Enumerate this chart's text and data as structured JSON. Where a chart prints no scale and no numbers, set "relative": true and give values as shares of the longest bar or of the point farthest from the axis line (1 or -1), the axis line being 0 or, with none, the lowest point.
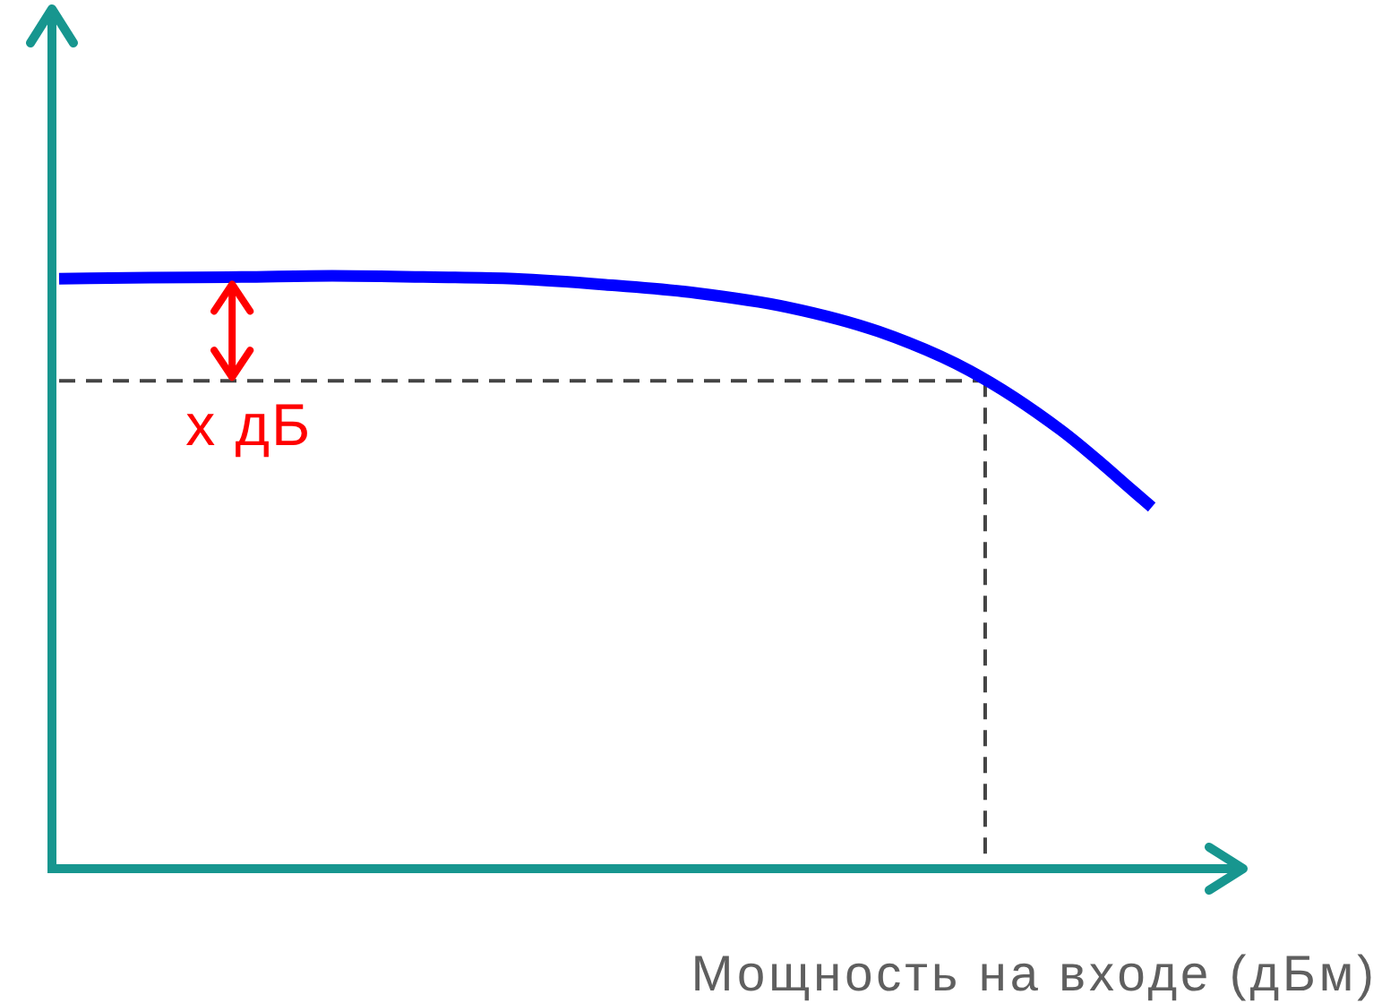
{
  "chart_data": {
    "type": "line",
    "xlabel": "Мощность на входе (дБм)",
    "categories": [
      null,
      null,
      null,
      null,
      null,
      null,
      null,
      null,
      null,
      null,
      null,
      null,
      null
    ],
    "series": [
      {
        "color": "#0000ff",
        "values": [
          0.995,
          0.997,
          0.998,
          1.0,
          0.998,
          0.995,
          0.985,
          0.971,
          0.947,
          0.906,
          0.84,
          0.74,
          0.61
        ]
      }
    ],
    "relative": true,
    "ref_lines": [
      {
        "axis": "y",
        "value": 0.823,
        "line_style": "dashed",
        "color": "#444444"
      }
    ],
    "annotations": [
      "x дБ"
    ],
    "tick_labels": false,
    "marker": "none",
    "line_style": "solid"
  }
}
